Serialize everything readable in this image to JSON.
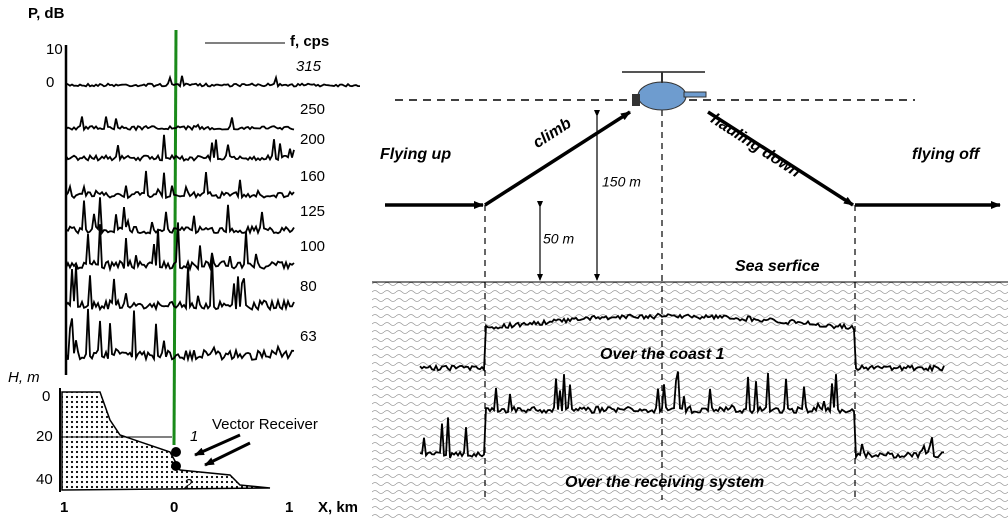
{
  "left_panel": {
    "p_axis_label": "P, dB",
    "f_axis_label": "f, cps",
    "p_ticks": [
      "10",
      "0"
    ],
    "frequencies": [
      "315",
      "250",
      "200",
      "160",
      "125",
      "100",
      "80",
      "63"
    ],
    "h_axis_label": "H, m",
    "h_ticks": [
      "0",
      "20",
      "40"
    ],
    "receiver_label": "Vector Receiver",
    "receiver_numbers": [
      "1",
      "2"
    ],
    "x_ticks": [
      "1",
      "0",
      "1"
    ],
    "x_axis_label": "X, km"
  },
  "right_panel": {
    "flying_up": "Flying up",
    "climb": "climb",
    "hauling_down": "hauling down",
    "flying_off": "flying off",
    "height_high": "150 m",
    "height_low": "50 m",
    "sea_surface": "Sea serfice",
    "trace_coast": "Over the coast 1",
    "trace_receiver": "Over the receiving system"
  }
}
